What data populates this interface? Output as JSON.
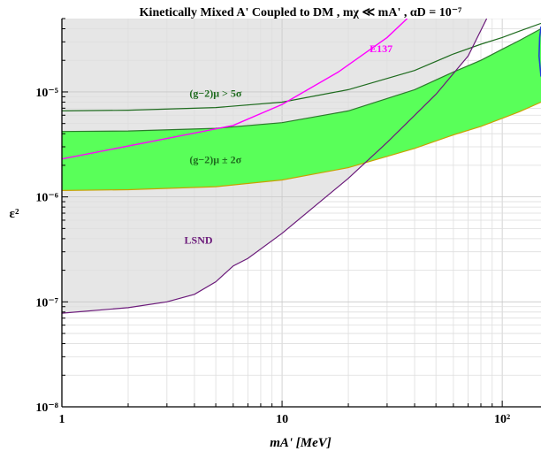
{
  "chart_data": {
    "type": "line",
    "title": "Kinetically Mixed A' Coupled to DM ,   mχ ≪ mA' ,   αD = 10⁻⁷",
    "xlabel": "mA' [MeV]",
    "ylabel": "ε²",
    "x_scale": "log",
    "y_scale": "log",
    "xlim": [
      1,
      150
    ],
    "ylim": [
      1e-08,
      5e-05
    ],
    "grid": true,
    "x_ticks": [
      {
        "value": 1,
        "label": "1"
      },
      {
        "value": 10,
        "label": "10"
      },
      {
        "value": 100,
        "label": "10²"
      }
    ],
    "y_ticks": [
      {
        "value": 1e-08,
        "label": "10⁻⁸"
      },
      {
        "value": 1e-07,
        "label": "10⁻⁷"
      },
      {
        "value": 1e-06,
        "label": "10⁻⁶"
      },
      {
        "value": 1e-05,
        "label": "10⁻⁵"
      }
    ],
    "regions": [
      {
        "name": "LSND",
        "color": "#e6e6e6",
        "boundary_color": "#6b1a7a",
        "boundary": [
          [
            1,
            7.8e-08
          ],
          [
            2,
            8.8e-08
          ],
          [
            3,
            1e-07
          ],
          [
            4,
            1.18e-07
          ],
          [
            5,
            1.55e-07
          ],
          [
            6,
            2.2e-07
          ],
          [
            7,
            2.6e-07
          ],
          [
            10,
            4.5e-07
          ],
          [
            20,
            1.5e-06
          ],
          [
            30,
            3.3e-06
          ],
          [
            50,
            9.5e-06
          ],
          [
            70,
            2.2e-05
          ],
          [
            85,
            5e-05
          ]
        ]
      },
      {
        "name": "E137",
        "color": "#e6e6e6",
        "boundary_color": "#ff00ff",
        "boundary": [
          [
            1,
            2.3e-06
          ],
          [
            3,
            3.6e-06
          ],
          [
            6,
            4.8e-06
          ],
          [
            10,
            7.6e-06
          ],
          [
            18,
            1.55e-05
          ],
          [
            30,
            3.3e-05
          ],
          [
            37,
            5e-05
          ]
        ]
      }
    ],
    "bands": [
      {
        "name": "(g−2)μ ± 2σ",
        "color": "#59ff59",
        "edge_upper_color": "#2c7a2c",
        "edge_lower_color": "#c9a000",
        "x": [
          1,
          2,
          5,
          10,
          20,
          40,
          60,
          80,
          100,
          120,
          150
        ],
        "upper": [
          4.2e-06,
          4.25e-06,
          4.5e-06,
          5.1e-06,
          6.6e-06,
          1.05e-05,
          1.55e-05,
          2e-05,
          2.55e-05,
          3.1e-05,
          4e-05
        ],
        "lower": [
          1.15e-06,
          1.17e-06,
          1.25e-06,
          1.45e-06,
          1.9e-06,
          2.9e-06,
          3.9e-06,
          4.7e-06,
          5.6e-06,
          6.5e-06,
          8e-06
        ]
      }
    ],
    "series": [
      {
        "name": "(g−2)μ > 5σ",
        "color": "#1e6b1e",
        "x": [
          1,
          2,
          5,
          10,
          20,
          40,
          60,
          80,
          100,
          120,
          150
        ],
        "y": [
          6.6e-06,
          6.7e-06,
          7.1e-06,
          8e-06,
          1.05e-05,
          1.6e-05,
          2.3e-05,
          2.85e-05,
          3.3e-05,
          3.8e-05,
          4.5e-05
        ]
      }
    ],
    "extra_curve": {
      "color": "#1f3fd6",
      "x": [
        150,
        148,
        147,
        150
      ],
      "y": [
        4.2e-05,
        3.3e-05,
        2.2e-05,
        1.4e-05
      ]
    },
    "annotations": [
      {
        "text": "E137",
        "x": 25,
        "y": 2.4e-05,
        "color": "#ff00ff"
      },
      {
        "text": "(g−2)μ > 5σ",
        "x": 3.8,
        "y": 9e-06,
        "color": "#1e6b1e"
      },
      {
        "text": "(g−2)μ ± 2σ",
        "x": 3.8,
        "y": 2.1e-06,
        "color": "#1e6b1e"
      },
      {
        "text": "LSND",
        "x": 3.6,
        "y": 3.6e-07,
        "color": "#6b1a7a"
      }
    ]
  }
}
